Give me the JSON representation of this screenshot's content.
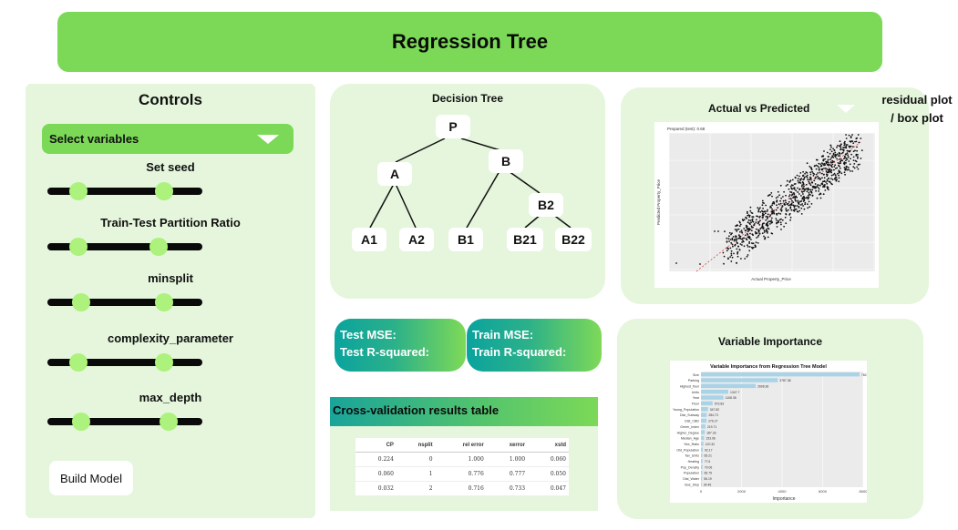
{
  "header": {
    "title": "Regression Tree"
  },
  "controls": {
    "title": "Controls",
    "select_label": "Select variables",
    "sliders": [
      {
        "label": "Set seed",
        "low": 0.2,
        "high": 0.75
      },
      {
        "label": "Train-Test Partition Ratio",
        "low": 0.2,
        "high": 0.72
      },
      {
        "label": "minsplit",
        "low": 0.22,
        "high": 0.75
      },
      {
        "label": "complexity_parameter",
        "low": 0.2,
        "high": 0.75
      },
      {
        "label": "max_depth",
        "low": 0.22,
        "high": 0.78
      }
    ],
    "build_label": "Build Model"
  },
  "tree": {
    "title": "Decision Tree",
    "nodes": {
      "root": "P",
      "a": "A",
      "b": "B",
      "a1": "A1",
      "a2": "A2",
      "b1": "B1",
      "b2": "B2",
      "b21": "B21",
      "b22": "B22"
    }
  },
  "metrics": {
    "test": {
      "mse": "Test MSE:",
      "r2": "Test R-squared:"
    },
    "train": {
      "mse": "Train MSE:",
      "r2": "Train R-squared:"
    }
  },
  "cv": {
    "title": "Cross-validation results table",
    "columns": [
      "CP",
      "nsplit",
      "rel error",
      "xerror",
      "xstd"
    ],
    "rows": [
      [
        "0.224",
        "0",
        "1.000",
        "1.000",
        "0.060"
      ],
      [
        "0.060",
        "1",
        "0.776",
        "0.777",
        "0.050"
      ],
      [
        "0.032",
        "2",
        "0.716",
        "0.733",
        "0.047"
      ]
    ]
  },
  "actual_vs_predicted": {
    "title": "Actual vs Predicted",
    "plot_note": "Prepared (test): 0.68",
    "xlabel": "Actual Property_Price",
    "ylabel": "Predicted Property_Price"
  },
  "residual_label": "residual plot / box plot",
  "variable_importance": {
    "title": "Variable Importance",
    "colors": {
      "bar": "#a9d3e6",
      "bg": "#ebebeb"
    }
  },
  "chart_data": {
    "type": "bar",
    "title": "Variable Importance from Regression Tree Model",
    "xlabel": "Importance",
    "ylabel": "",
    "xlim": [
      0,
      8000
    ],
    "ticks": [
      "0",
      "2000",
      "4000",
      "6000",
      "8000"
    ],
    "categories": [
      "Size",
      "Parking",
      "Highest_floor",
      "Units",
      "Year",
      "Floor",
      "Young_Population",
      "Dist_Subway",
      "Dist_CBD",
      "Green_Index",
      "Higher_Degree",
      "Median_Age",
      "Sex_Ratio",
      "Old_Population",
      "Tax_Units",
      "Heating",
      "Pop_Density",
      "Population",
      "Dist_Water",
      "Bus_Stop"
    ],
    "values": [
      7821,
      3787.38,
      2698.36,
      1347.7,
      1108.38,
      573.83,
      347.82,
      284.73,
      276.27,
      219.71,
      187.33,
      153.96,
      120.32,
      92.17,
      65.21,
      77.6,
      79.06,
      66.75,
      56.19,
      34.46
    ],
    "value_labels": [
      "7821",
      "3787.38",
      "2698.36",
      "1347.7",
      "1108.38",
      "573.83",
      "347.82",
      "284.73",
      "276.27",
      "219.71",
      "187.33",
      "153.96",
      "120.32",
      "92.17",
      "65.21",
      "77.6",
      "79.06",
      "66.75",
      "56.19",
      "34.46"
    ]
  }
}
